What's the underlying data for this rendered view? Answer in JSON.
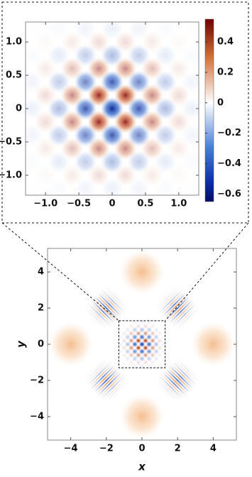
{
  "chart_data": [
    {
      "type": "heatmap",
      "xlim": [
        -1.3,
        1.3
      ],
      "ylim": [
        -1.3,
        1.3
      ],
      "xticks": [
        {
          "value": -1,
          "label": "−1.0"
        },
        {
          "value": -0.5,
          "label": "−0.5"
        },
        0,
        0.5,
        {
          "value": 1,
          "label": "1.0"
        }
      ],
      "yticks": [
        {
          "value": -1,
          "label": "−1.0"
        },
        {
          "value": -0.5,
          "label": "−0.5"
        },
        0,
        0.5,
        {
          "value": 1,
          "label": "1.0"
        }
      ],
      "colorbar": {
        "lim": [
          -0.65,
          0.55
        ],
        "ticks": [
          {
            "value": -0.6,
            "label": "−0.6"
          },
          {
            "value": -0.4,
            "label": "−0.4"
          },
          {
            "value": -0.2,
            "label": "−0.2"
          },
          0,
          0.2,
          0.4
        ]
      }
    },
    {
      "type": "heatmap",
      "xlabel": "x",
      "ylabel": "y",
      "xlim": [
        -5.3,
        5.3
      ],
      "ylim": [
        -5.3,
        5.3
      ],
      "xticks": [
        {
          "value": -4,
          "label": "−4"
        },
        {
          "value": -2,
          "label": "−2"
        },
        0,
        2,
        4
      ],
      "yticks": [
        {
          "value": -4,
          "label": "−4"
        },
        {
          "value": -2,
          "label": "−2"
        },
        0,
        2,
        4
      ]
    }
  ]
}
